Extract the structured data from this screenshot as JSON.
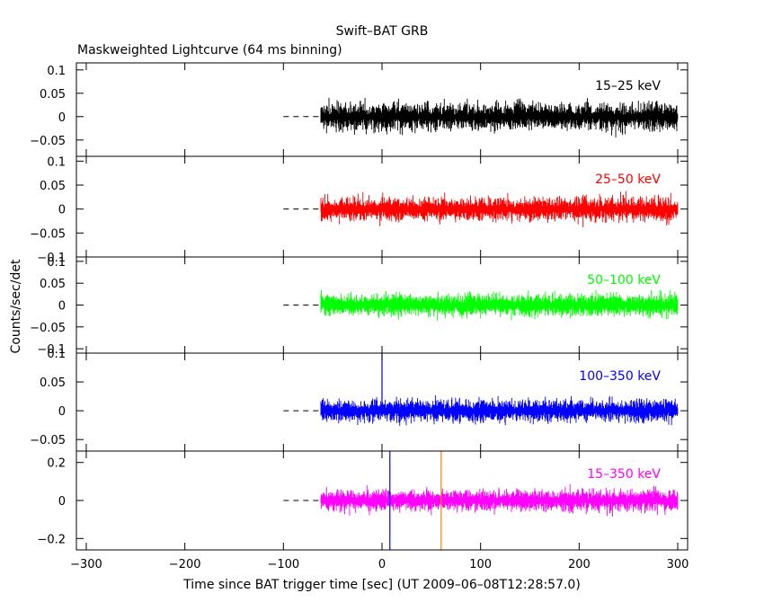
{
  "title": "Swift–BAT GRB",
  "subtitle": "Maskweighted Lightcurve (64 ms binning)",
  "xlabel": "Time since BAT trigger time [sec] (UT 2009–06–08T12:28:57.0)",
  "ylabel": "Counts/sec/det",
  "chart_data": {
    "type": "line",
    "x_range": [
      -310,
      310
    ],
    "x_ticks": [
      -300,
      -200,
      -100,
      0,
      100,
      200,
      300
    ],
    "data_start": -62,
    "data_end": 300,
    "baseline_dash_start": -100,
    "panels": [
      {
        "label": "15–25 keV",
        "color": "#000000",
        "ylim": [
          -0.085,
          0.115
        ],
        "yticks": [
          0.1,
          0.05,
          0,
          -0.05
        ],
        "ytick_labels": [
          "0.1",
          "0.05",
          "0",
          "−0.05"
        ],
        "noise_amplitude": 0.055,
        "spikes": []
      },
      {
        "label": "25–50 keV",
        "color": "#ff0000",
        "ylim": [
          -0.1,
          0.11
        ],
        "yticks": [
          0.1,
          0.05,
          0,
          -0.05,
          -0.1
        ],
        "ytick_labels": [
          "0.1",
          "0.05",
          "0",
          "−0.05",
          "−0.1"
        ],
        "noise_amplitude": 0.045,
        "spikes": []
      },
      {
        "label": "50–100 keV",
        "color": "#00ff00",
        "ylim": [
          -0.11,
          0.11
        ],
        "yticks": [
          0.1,
          0.05,
          0,
          -0.05,
          -0.1
        ],
        "ytick_labels": [
          "0.1",
          "0.05",
          "0",
          "−0.05",
          "−0.1"
        ],
        "noise_amplitude": 0.045,
        "spikes": []
      },
      {
        "label": "100–350 keV",
        "color": "#0000ff",
        "ylim": [
          -0.07,
          0.1
        ],
        "yticks": [
          0.1,
          0.05,
          0,
          -0.05
        ],
        "ytick_labels": [
          "0.1",
          "0.05",
          "0",
          "−0.05"
        ],
        "noise_amplitude": 0.035,
        "spikes": [
          {
            "x": 0,
            "y": 0.1
          }
        ]
      },
      {
        "label": "15–350 keV",
        "color": "#ff00ff",
        "ylim": [
          -0.26,
          0.26
        ],
        "yticks": [
          0.2,
          0,
          -0.2
        ],
        "ytick_labels": [
          "0.2",
          "0",
          "−0.2"
        ],
        "noise_amplitude": 0.1,
        "spikes": []
      }
    ],
    "markers": [
      {
        "x": 8,
        "color": "#0000ff",
        "panel": 4
      },
      {
        "x": 60,
        "color": "#ff8000",
        "panel": 4
      }
    ]
  }
}
